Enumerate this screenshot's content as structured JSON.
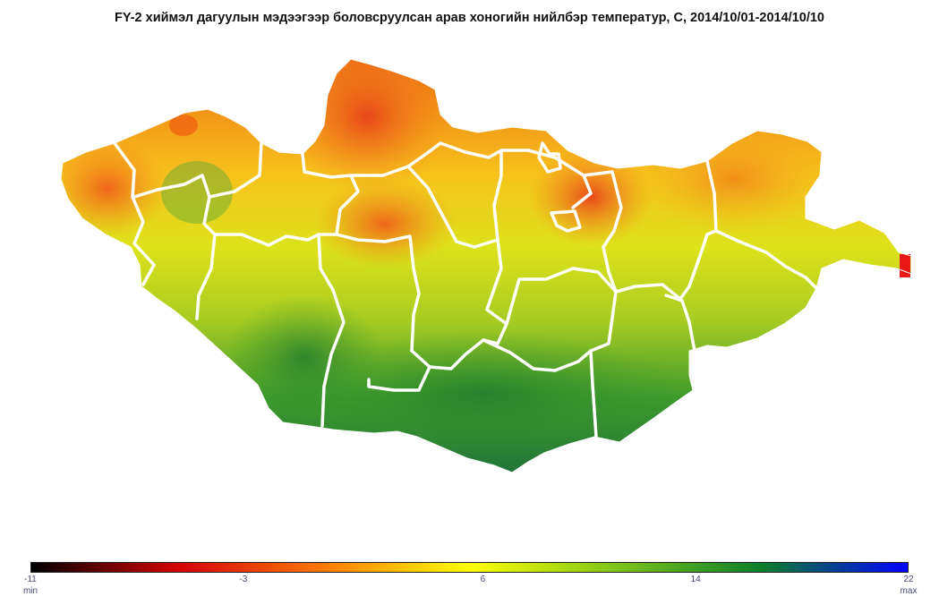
{
  "title": "FY-2 хиймэл дагуулын мэдээгээр боловсруулсан арав хоногийн нийлбэр температур, С, 2014/10/01-2014/10/10",
  "legend": {
    "ticks": [
      "-11",
      "-3",
      "6",
      "14",
      "22"
    ],
    "tick_values": [
      -11,
      -3,
      6,
      14,
      22
    ],
    "min_label": "min",
    "max_label": "max",
    "colors": [
      "#000000",
      "#d40000",
      "#ff7a00",
      "#ffff00",
      "#7fc41a",
      "#0a7f2a",
      "#0000ff"
    ]
  },
  "map_colors": {
    "outline": "#ffffff",
    "south_green": "#2e8b2e",
    "mid_yellow_green": "#c8dc20",
    "north_orange": "#f08a1e",
    "hot_spot_red": "#e81818"
  }
}
